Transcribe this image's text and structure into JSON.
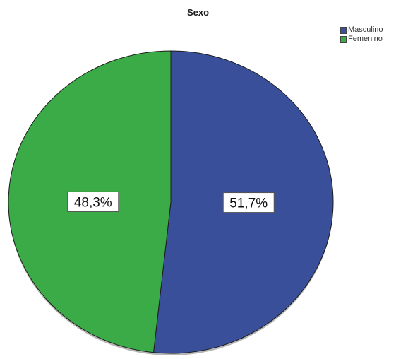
{
  "chart_data": {
    "type": "pie",
    "title": "Sexo",
    "categories": [
      "Masculino",
      "Femenino"
    ],
    "values": [
      51.7,
      48.3
    ],
    "data_labels": [
      "51,7%",
      "48,3%"
    ],
    "colors": [
      "#3a4f9a",
      "#3aab46"
    ],
    "legend_position": "top-right",
    "start_angle": "12 o'clock",
    "direction": "clockwise"
  }
}
